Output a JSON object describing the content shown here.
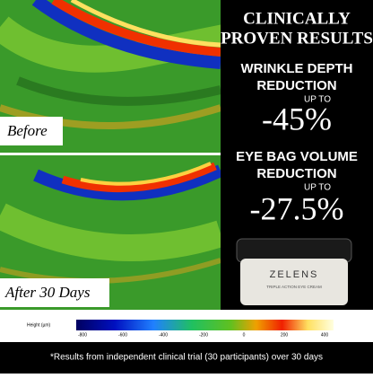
{
  "headline": {
    "line1": "CLINICALLY",
    "line2": "PROVEN RESULTS"
  },
  "claims": [
    {
      "title1": "WRINKLE DEPTH",
      "title2": "REDUCTION",
      "qualifier": "UP TO",
      "figure": "-45%"
    },
    {
      "title1": "EYE BAG VOLUME",
      "title2": "REDUCTION",
      "qualifier": "UP TO",
      "figure": "-27.5%"
    }
  ],
  "images": {
    "before": "Before",
    "after": "After 30 Days"
  },
  "product": {
    "brand": "ZELENS",
    "name": "TRIPLE ACTION EYE CREAM"
  },
  "colorbar": {
    "label": "Height (µm)",
    "ticks": [
      "-800",
      "-600",
      "-400",
      "-200",
      "0",
      "200",
      "400"
    ]
  },
  "footnote": "*Results from independent clinical trial (30 participants) over 30 days"
}
